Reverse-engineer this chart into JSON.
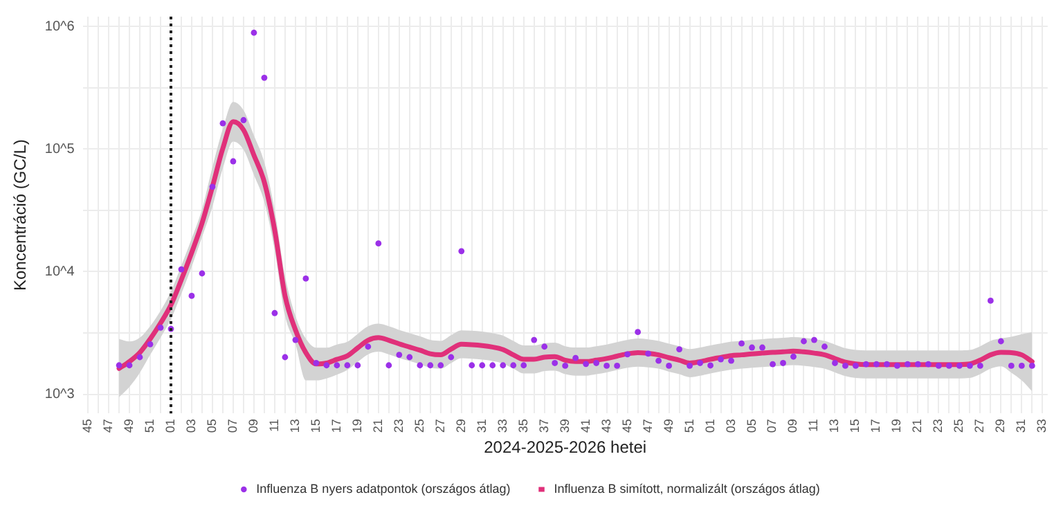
{
  "chart_data": {
    "type": "line",
    "xlabel": "2024-2025-2026 hetei",
    "ylabel": "Koncentráció (GC/L)",
    "categories": [
      "45",
      null,
      "47",
      null,
      "49",
      null,
      "51",
      null,
      "01",
      null,
      "03",
      null,
      "05",
      null,
      "07",
      null,
      "09",
      null,
      "11",
      null,
      "13",
      null,
      "15",
      null,
      "17",
      null,
      "19",
      null,
      "21",
      null,
      "23",
      null,
      "25",
      null,
      "27",
      null,
      "29",
      null,
      "31",
      null,
      "33",
      null,
      "35",
      null,
      "37",
      null,
      "39",
      null,
      "41",
      null,
      "43",
      null,
      "45",
      null,
      "47",
      null,
      "49",
      null,
      "51",
      null,
      "01",
      null,
      "03",
      null,
      "05",
      null,
      "07",
      null,
      "09",
      null,
      "11",
      null,
      "13",
      null,
      "15",
      null,
      "17",
      null,
      "19",
      null,
      "21",
      null,
      "23",
      null,
      "25",
      null,
      "27",
      null,
      "29",
      null,
      "31",
      null,
      "33"
    ],
    "log": "y",
    "ylim": [
      700,
      1200000
    ],
    "yticks": [
      {
        "value": 1000,
        "label": "10^3"
      },
      {
        "value": 3162,
        "label": null
      },
      {
        "value": 10000,
        "label": "10^4"
      },
      {
        "value": 31623,
        "label": null
      },
      {
        "value": 100000,
        "label": "10^5"
      },
      {
        "value": 316228,
        "label": null
      },
      {
        "value": 1000000,
        "label": "10^6"
      }
    ],
    "grid": true,
    "legend": "bottom",
    "ref_lines": [
      {
        "axis": "x",
        "value": "01",
        "color": "#222222",
        "line_style": "dotted"
      }
    ],
    "series": [
      {
        "name": "Influenza B nyers adatpontok (országos átlag)",
        "type": "scatter",
        "marker": "circle",
        "color": "#9b30e8",
        "values": [
          null,
          null,
          null,
          1725,
          1725,
          2010,
          2560,
          3500,
          3420,
          10450,
          6350,
          9680,
          49200,
          162000,
          79400,
          172000,
          887000,
          381000,
          4600,
          2010,
          2780,
          8790,
          1800,
          1725,
          1725,
          1725,
          1725,
          2450,
          17000,
          1725,
          2100,
          2010,
          1725,
          1725,
          1725,
          2010,
          14700,
          1725,
          1725,
          1725,
          1725,
          1725,
          1725,
          2780,
          2450,
          1800,
          1710,
          1980,
          1770,
          1800,
          1710,
          1710,
          2120,
          3220,
          2150,
          1880,
          1710,
          2330,
          1710,
          1800,
          1720,
          1930,
          1880,
          2600,
          2410,
          2410,
          1760,
          1800,
          2030,
          2710,
          2780,
          2450,
          1800,
          1710,
          1710,
          1760,
          1760,
          1760,
          1710,
          1760,
          1760,
          1760,
          1710,
          1710,
          1710,
          1710,
          1710,
          5800,
          2710,
          1710,
          1710,
          1710,
          null
        ]
      },
      {
        "name": "Influenza B simított, normalizált (országos átlag)",
        "marker": "none",
        "line_style": "solid",
        "color": "#e0307a",
        "values": [
          null,
          null,
          null,
          1625,
          1850,
          2190,
          2830,
          3810,
          5360,
          8580,
          14300,
          24900,
          49200,
          101000,
          167000,
          143000,
          89000,
          53800,
          21800,
          6350,
          3360,
          2190,
          1770,
          1800,
          1930,
          2060,
          2390,
          2760,
          2900,
          2760,
          2580,
          2430,
          2290,
          2140,
          2100,
          2340,
          2560,
          2540,
          2500,
          2430,
          2320,
          2100,
          1930,
          1930,
          2010,
          2030,
          1900,
          1850,
          1850,
          1900,
          1960,
          2050,
          2140,
          2190,
          2160,
          2100,
          1990,
          1900,
          1800,
          1850,
          1930,
          2000,
          2070,
          2100,
          2140,
          2170,
          2200,
          2220,
          2250,
          2220,
          2170,
          2100,
          1960,
          1830,
          1770,
          1750,
          1750,
          1750,
          1750,
          1750,
          1750,
          1750,
          1750,
          1750,
          1750,
          1770,
          1900,
          2100,
          2200,
          2190,
          2100,
          1850,
          null
        ],
        "lower": [
          null,
          null,
          null,
          950,
          1150,
          1500,
          2100,
          2900,
          4100,
          6600,
          11000,
          19200,
          33900,
          69700,
          115000,
          98600,
          61400,
          37100,
          15000,
          4380,
          2580,
          1300,
          1300,
          1350,
          1450,
          1580,
          1840,
          2120,
          2230,
          2120,
          1980,
          1870,
          1760,
          1650,
          1620,
          1800,
          1970,
          1950,
          1920,
          1870,
          1780,
          1620,
          1480,
          1480,
          1550,
          1560,
          1460,
          1420,
          1420,
          1460,
          1510,
          1580,
          1650,
          1680,
          1660,
          1620,
          1530,
          1460,
          1380,
          1420,
          1480,
          1540,
          1590,
          1620,
          1650,
          1670,
          1690,
          1710,
          1730,
          1710,
          1670,
          1620,
          1510,
          1410,
          1360,
          1350,
          1350,
          1350,
          1350,
          1350,
          1350,
          1350,
          1350,
          1350,
          1350,
          1360,
          1460,
          1620,
          1690,
          1500,
          1300,
          1060,
          null
        ],
        "upper": [
          null,
          null,
          null,
          2830,
          2700,
          2900,
          3600,
          4800,
          6900,
          11200,
          18600,
          32400,
          71300,
          146000,
          242000,
          207000,
          129000,
          78000,
          31600,
          9210,
          4370,
          2850,
          2400,
          2400,
          2550,
          2680,
          3110,
          3590,
          3770,
          3590,
          3350,
          3160,
          2980,
          2780,
          2730,
          3040,
          3330,
          3300,
          3250,
          3160,
          3020,
          2730,
          2510,
          2510,
          2610,
          2640,
          2470,
          2410,
          2410,
          2470,
          2550,
          2670,
          2780,
          2850,
          2810,
          2730,
          2590,
          2470,
          2340,
          2410,
          2510,
          2600,
          2690,
          2730,
          2780,
          2820,
          2860,
          2890,
          2930,
          2890,
          2820,
          2730,
          2550,
          2380,
          2300,
          2280,
          2280,
          2280,
          2280,
          2280,
          2280,
          2280,
          2280,
          2280,
          2280,
          2300,
          2470,
          2730,
          2860,
          2950,
          3100,
          3220,
          null
        ]
      }
    ]
  }
}
